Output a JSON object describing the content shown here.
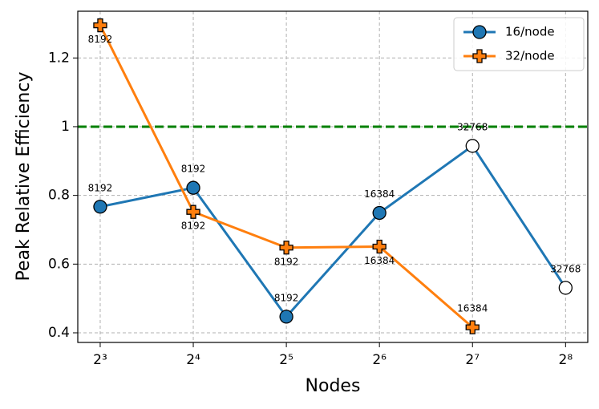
{
  "chart_data": {
    "type": "line",
    "x_label": "Nodes",
    "y_label": "Peak Relative Efficiency",
    "x": [
      8,
      16,
      32,
      64,
      128,
      256
    ],
    "series": [
      {
        "name": "16/node",
        "color": "#1f77b4",
        "marker": "circle",
        "values": [
          0.767,
          0.822,
          0.447,
          0.749,
          0.944,
          0.531
        ],
        "marker_colors": [
          "#1f77b4",
          "#1f77b4",
          "#1f77b4",
          "#1f77b4",
          "#ffffff",
          "#ffffff"
        ],
        "annotations": [
          8192,
          8192,
          8192,
          16384,
          32768,
          32768
        ]
      },
      {
        "name": "32/node",
        "color": "#ff7f0e",
        "marker": "plus",
        "values": [
          1.295,
          0.752,
          0.648,
          0.651,
          0.416,
          null
        ],
        "marker_colors": [
          "#ff7f0e",
          "#ff7f0e",
          "#ff7f0e",
          "#ff7f0e",
          "#ff7f0e",
          null
        ],
        "annotations": [
          8192,
          8192,
          8192,
          16384,
          16384,
          null
        ]
      }
    ],
    "hline": {
      "value": 1.0,
      "color": "#008000"
    },
    "xscale": "log2",
    "xlim": [
      6.77,
      302
    ],
    "xticks": [
      {
        "value": 8,
        "label": "2³"
      },
      {
        "value": 16,
        "label": "2⁴"
      },
      {
        "value": 32,
        "label": "2⁵"
      },
      {
        "value": 64,
        "label": "2⁶"
      },
      {
        "value": 128,
        "label": "2⁷"
      },
      {
        "value": 256,
        "label": "2⁸"
      }
    ],
    "ylim": [
      0.372,
      1.336
    ],
    "yticks": [
      0.4,
      0.6,
      0.8,
      1.0,
      1.2
    ],
    "grid": true,
    "legend": "upper right"
  }
}
